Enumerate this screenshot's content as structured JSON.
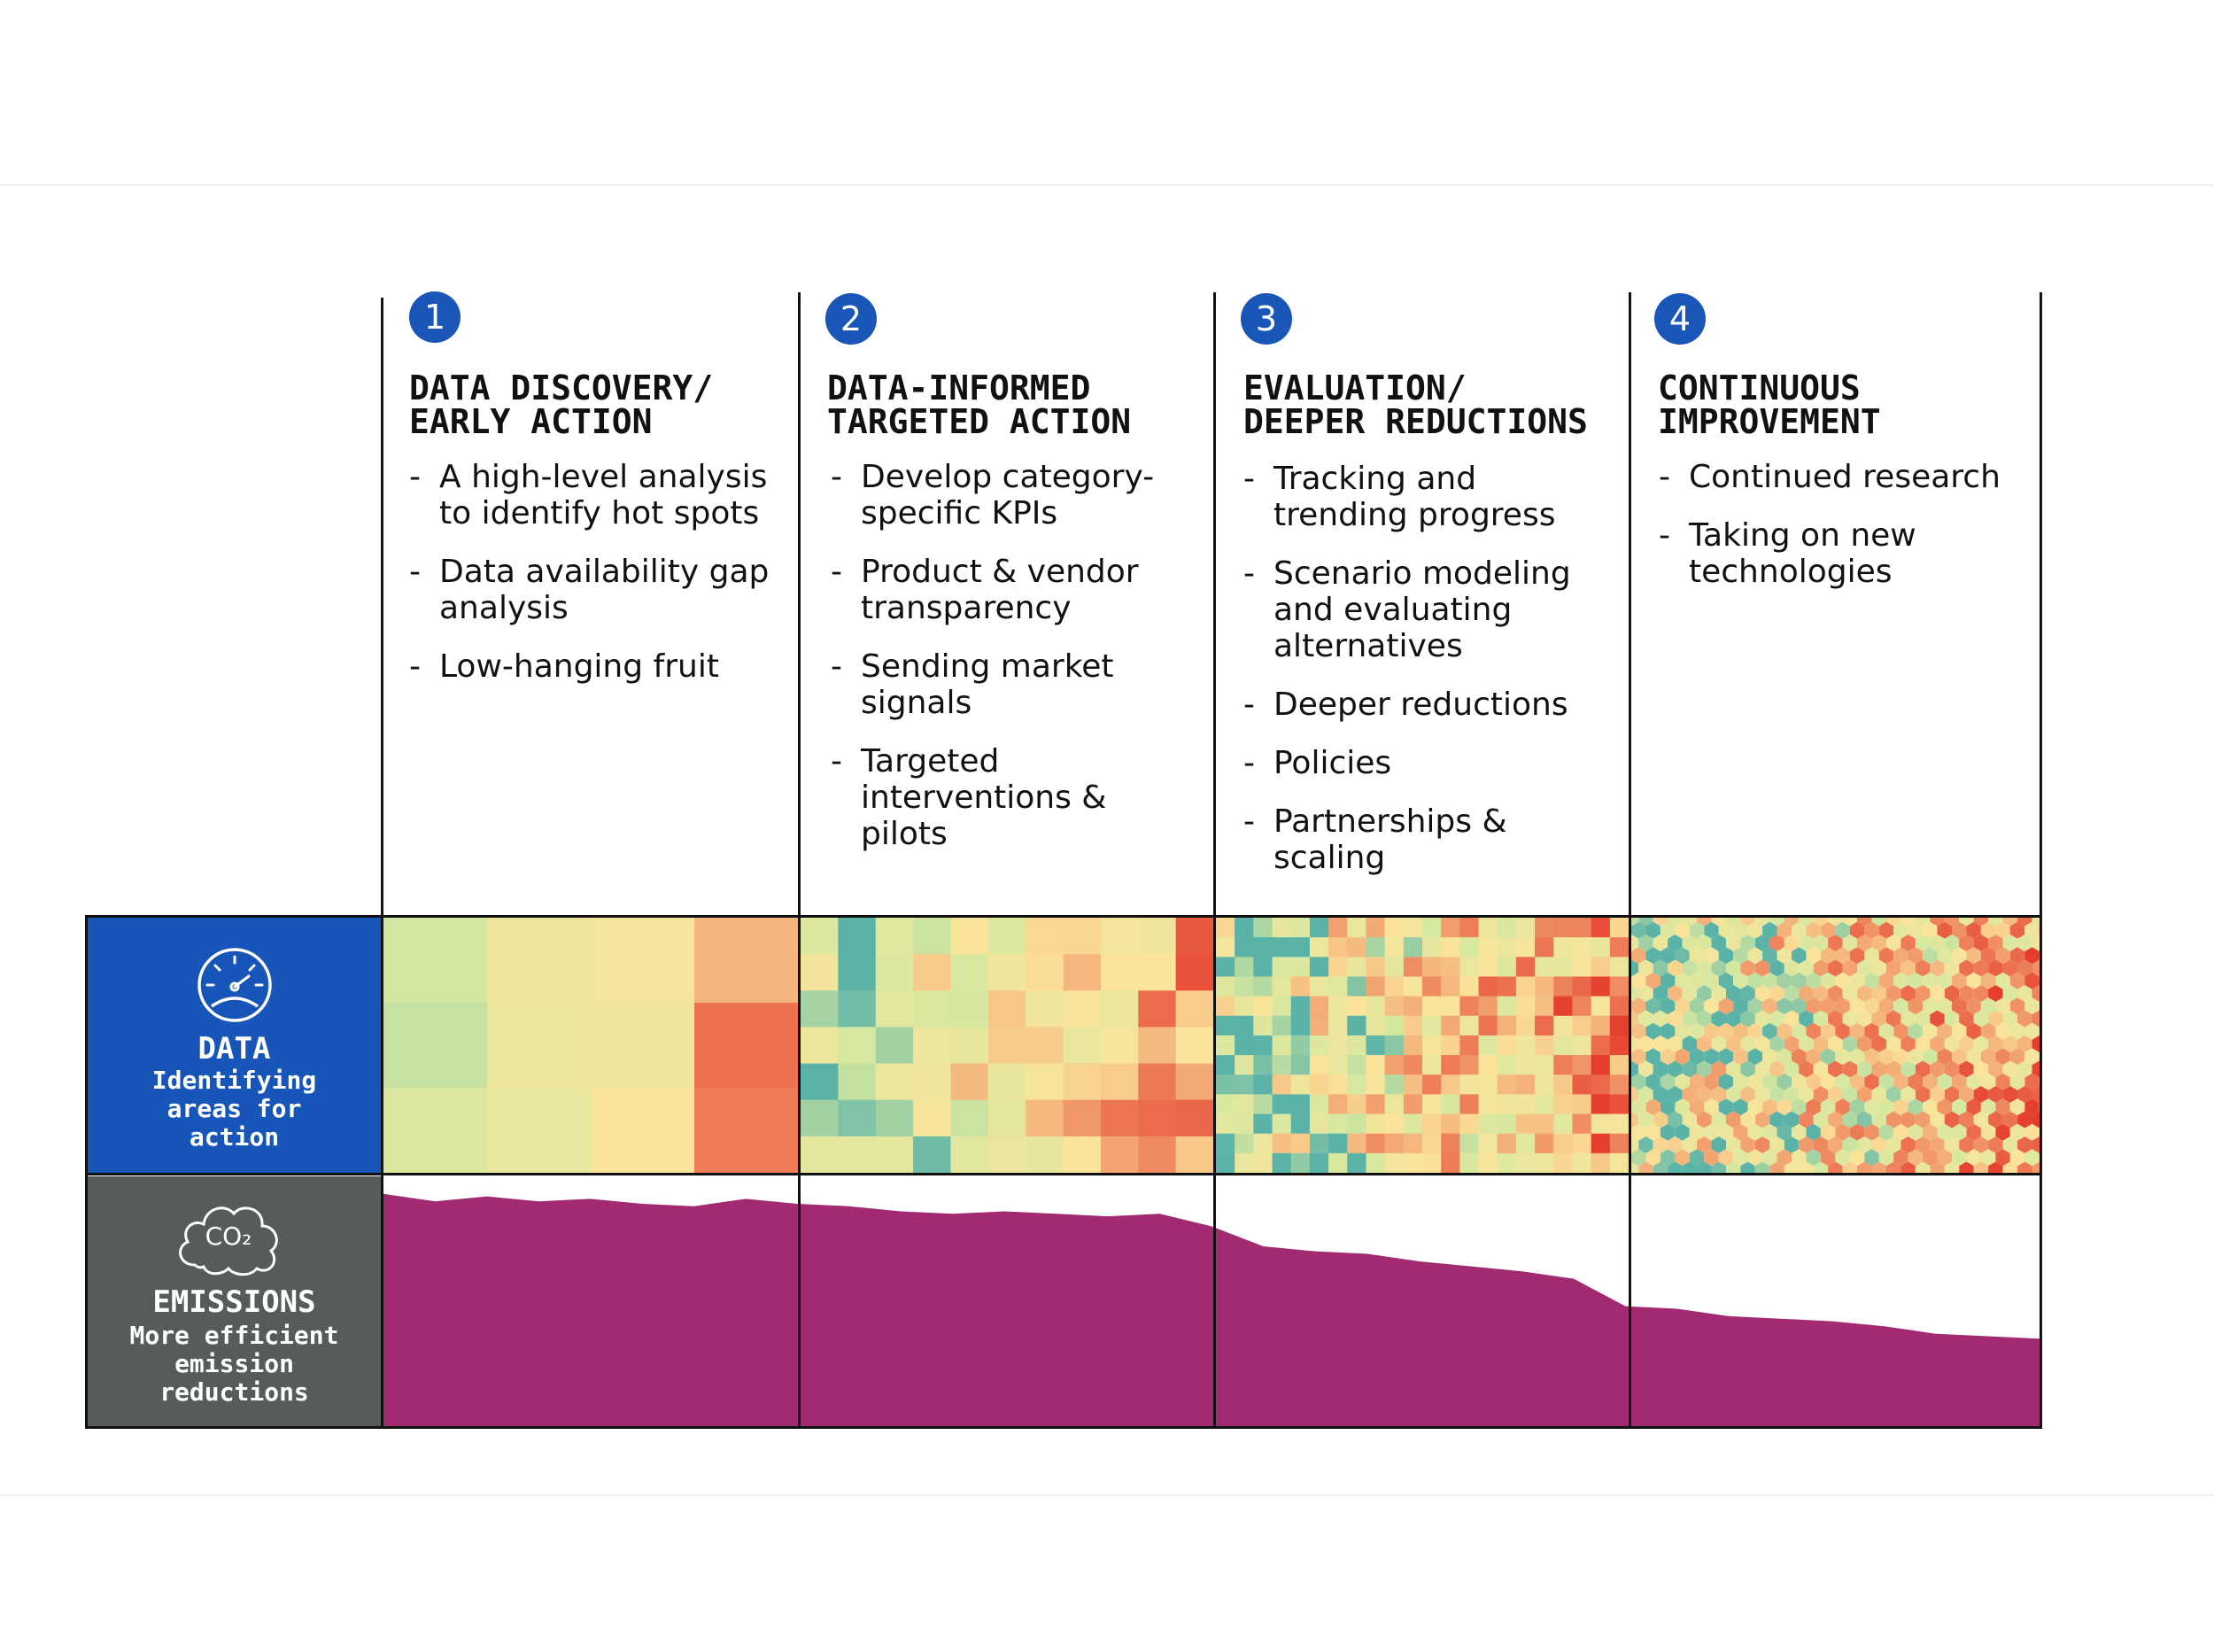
{
  "phases": [
    {
      "number": "1",
      "title": "DATA DISCOVERY/\nEARLY ACTION",
      "bullets": [
        "A high-level analysis to identify hot spots",
        "Data availability gap analysis",
        "Low-hanging fruit"
      ]
    },
    {
      "number": "2",
      "title": "DATA-INFORMED\nTARGETED ACTION",
      "bullets": [
        "Develop category-specific KPIs",
        "Product & vendor transparency",
        "Sending market signals",
        "Targeted interventions & pilots"
      ]
    },
    {
      "number": "3",
      "title": "EVALUATION/\nDEEPER REDUCTIONS",
      "bullets": [
        "Tracking and trending progress",
        "Scenario modeling and evaluating alternatives",
        "Deeper reductions",
        "Policies",
        "Partnerships & scaling"
      ]
    },
    {
      "number": "4",
      "title": "CONTINUOUS\nIMPROVEMENT",
      "bullets": [
        "Continued research",
        "Taking on new technologies"
      ]
    }
  ],
  "rows": {
    "data": {
      "title": "DATA",
      "subtitle": "Identifying areas for action",
      "icon": "gauge-icon",
      "color": "#1756b8"
    },
    "emissions": {
      "title": "EMISSIONS",
      "subtitle": "More efficient emission reductions",
      "icon": "co2-cloud-icon",
      "icon_text": "CO₂",
      "color": "#565b5b"
    }
  },
  "colors": {
    "accent": "#1a56b8",
    "emissions_fill": "#a12a70",
    "heat_low": "#5bb3a8",
    "heat_mid": "#fbe49a",
    "heat_high": "#e53e2e"
  },
  "emissions_profile": [
    0.93,
    0.9,
    0.92,
    0.9,
    0.91,
    0.89,
    0.88,
    0.91,
    0.89,
    0.88,
    0.86,
    0.85,
    0.86,
    0.85,
    0.84,
    0.85,
    0.8,
    0.72,
    0.7,
    0.69,
    0.66,
    0.64,
    0.62,
    0.59,
    0.48,
    0.47,
    0.44,
    0.43,
    0.42,
    0.4,
    0.37,
    0.36,
    0.35
  ]
}
